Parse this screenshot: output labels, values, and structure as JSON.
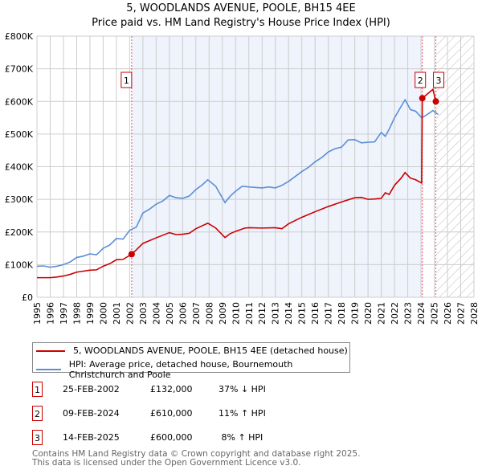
{
  "title": "5, WOODLANDS AVENUE, POOLE, BH15 4EE",
  "subtitle": "Price paid vs. HM Land Registry's House Price Index (HPI)",
  "chart_data": {
    "type": "line",
    "title": "5, WOODLANDS AVENUE, POOLE, BH15 4EE",
    "subtitle": "Price paid vs. HM Land Registry's House Price Index (HPI)",
    "xlim": [
      1995,
      2028
    ],
    "ylim": [
      0,
      800000
    ],
    "x_ticks": [
      "1995",
      "1996",
      "1997",
      "1998",
      "1999",
      "2000",
      "2001",
      "2002",
      "2003",
      "2004",
      "2005",
      "2006",
      "2007",
      "2008",
      "2009",
      "2010",
      "2011",
      "2012",
      "2013",
      "2014",
      "2015",
      "2016",
      "2017",
      "2018",
      "2019",
      "2020",
      "2021",
      "2022",
      "2023",
      "2024",
      "2025",
      "2026",
      "2027",
      "2028"
    ],
    "y_ticks": [
      {
        "v": 0,
        "label": "£0"
      },
      {
        "v": 100000,
        "label": "£100K"
      },
      {
        "v": 200000,
        "label": "£200K"
      },
      {
        "v": 300000,
        "label": "£300K"
      },
      {
        "v": 400000,
        "label": "£400K"
      },
      {
        "v": 500000,
        "label": "£500K"
      },
      {
        "v": 600000,
        "label": "£600K"
      },
      {
        "v": 700000,
        "label": "£700K"
      },
      {
        "v": 800000,
        "label": "£800K"
      }
    ],
    "grid": true,
    "shaded_region": [
      2002.15,
      2024.1
    ],
    "forecast_hatch_from": 2025.12,
    "series": [
      {
        "name": "5, WOODLANDS AVENUE, POOLE, BH15 4EE (detached house)",
        "color": "#cc0000",
        "x": [
          1995,
          1996,
          1996.5,
          1997,
          1997.5,
          1998,
          1998.5,
          1999,
          1999.5,
          2000,
          2000.5,
          2001,
          2001.5,
          2002.15,
          2002.5,
          2003,
          2004,
          2005,
          2005.5,
          2006,
          2006.5,
          2007,
          2007.9,
          2008.5,
          2009.2,
          2009.6,
          2010,
          2010.7,
          2011,
          2012,
          2013,
          2013.5,
          2014,
          2015,
          2016,
          2017,
          2018,
          2019,
          2019.5,
          2020,
          2020.5,
          2021,
          2021.3,
          2021.6,
          2022,
          2022.5,
          2022.8,
          2023.2,
          2023.6,
          2024.05,
          2024.1,
          2024.4,
          2024.9,
          2025.12
        ],
        "y": [
          60000,
          60000,
          62000,
          65000,
          70000,
          77000,
          80000,
          83000,
          84000,
          95000,
          103000,
          115000,
          116000,
          132000,
          145000,
          165000,
          182000,
          198000,
          192000,
          193000,
          196000,
          210000,
          227000,
          212000,
          183000,
          195000,
          202000,
          212000,
          213000,
          212000,
          213000,
          210000,
          225000,
          245000,
          262000,
          278000,
          292000,
          305000,
          306000,
          300000,
          301000,
          303000,
          320000,
          315000,
          343000,
          365000,
          382000,
          365000,
          360000,
          350000,
          610000,
          620000,
          637000,
          600000
        ]
      },
      {
        "name": "HPI: Average price, detached house, Bournemouth Christchurch and Poole",
        "color": "#5b8fd4",
        "x": [
          1995,
          1995.5,
          1996,
          1996.5,
          1997,
          1997.5,
          1998,
          1998.5,
          1999,
          1999.5,
          2000,
          2000.5,
          2001,
          2001.5,
          2002,
          2002.5,
          2003,
          2003.5,
          2004,
          2004.5,
          2005,
          2005.5,
          2006,
          2006.5,
          2007,
          2007.5,
          2007.9,
          2008.5,
          2009.2,
          2009.6,
          2010,
          2010.5,
          2011,
          2012,
          2012.5,
          2013,
          2013.5,
          2014,
          2014.5,
          2015,
          2015.5,
          2016,
          2016.5,
          2017,
          2017.5,
          2018,
          2018.5,
          2019,
          2019.5,
          2020,
          2020.5,
          2021,
          2021.3,
          2021.6,
          2022,
          2022.5,
          2022.8,
          2023.2,
          2023.6,
          2024.05,
          2024.4,
          2024.9,
          2025.3
        ],
        "y": [
          95000,
          96000,
          92000,
          95000,
          100000,
          108000,
          122000,
          126000,
          133000,
          130000,
          150000,
          160000,
          180000,
          178000,
          205000,
          215000,
          258000,
          270000,
          285000,
          295000,
          312000,
          305000,
          303000,
          310000,
          330000,
          345000,
          360000,
          340000,
          290000,
          310000,
          325000,
          340000,
          338000,
          335000,
          338000,
          335000,
          343000,
          355000,
          370000,
          385000,
          398000,
          415000,
          428000,
          445000,
          455000,
          460000,
          482000,
          483000,
          473000,
          475000,
          476000,
          505000,
          493000,
          515000,
          550000,
          585000,
          605000,
          575000,
          570000,
          550000,
          558000,
          572000,
          560000
        ]
      }
    ],
    "annotations": [
      {
        "label": "1",
        "x": 2002.15,
        "y": 132000
      },
      {
        "label": "2",
        "x": 2024.1,
        "y": 610000
      },
      {
        "label": "3",
        "x": 2025.12,
        "y": 600000
      }
    ]
  },
  "legend": {
    "items": [
      {
        "label": "5, WOODLANDS AVENUE, POOLE, BH15 4EE (detached house)",
        "color": "#cc0000"
      },
      {
        "label": "HPI: Average price, detached house, Bournemouth Christchurch and Poole",
        "color": "#5b8fd4"
      }
    ]
  },
  "transactions": [
    {
      "num": "1",
      "date": "25-FEB-2002",
      "price": "£132,000",
      "hpi": "37% ↓ HPI"
    },
    {
      "num": "2",
      "date": "09-FEB-2024",
      "price": "£610,000",
      "hpi": "11% ↑ HPI"
    },
    {
      "num": "3",
      "date": "14-FEB-2025",
      "price": "£600,000",
      "hpi": " 8% ↑ HPI"
    }
  ],
  "footer": {
    "line1": "Contains HM Land Registry data © Crown copyright and database right 2025.",
    "line2": "This data is licensed under the Open Government Licence v3.0."
  }
}
